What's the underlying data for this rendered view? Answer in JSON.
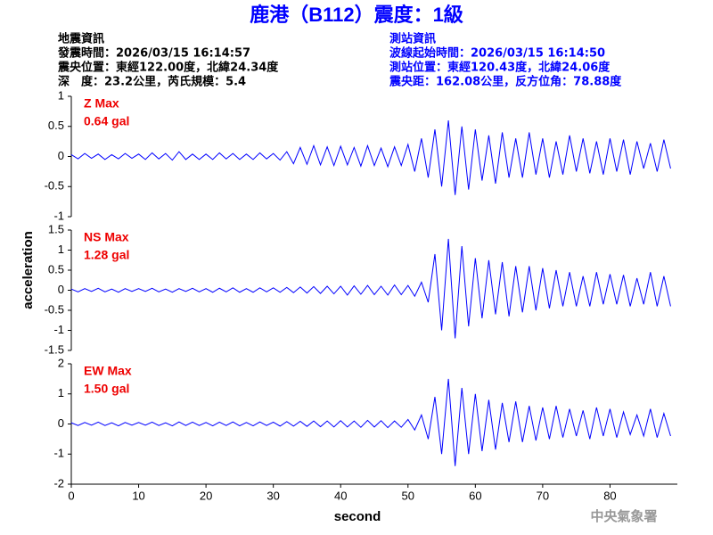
{
  "header": {
    "title": "鹿港（B112）震度：1級",
    "left": [
      "地震資訊",
      "發震時間：2026/03/15 16:14:57",
      "震央位置：東經122.00度，北緯24.34度",
      "深　度：23.2公里，芮氏規模：5.4"
    ],
    "right": [
      "測站資訊",
      "波線起始時間：2026/03/15 16:14:50",
      "測站位置：東經120.43度，北緯24.06度",
      "震央距：162.08公里，反方位角：78.88度"
    ]
  },
  "y_label": "acceleration",
  "x_label": "second",
  "credit": "中央氣象署",
  "chart_data": [
    {
      "type": "line",
      "color": "#0000ff",
      "annotations": [
        "Z Max",
        "0.64 gal"
      ],
      "xlim": [
        0,
        90
      ],
      "ylim": [
        -1,
        1
      ],
      "yticks": [
        -1,
        -0.5,
        0,
        0.5,
        1
      ],
      "x": [
        0,
        1,
        2,
        3,
        4,
        5,
        6,
        7,
        8,
        9,
        10,
        11,
        12,
        13,
        14,
        15,
        16,
        17,
        18,
        19,
        20,
        21,
        22,
        23,
        24,
        25,
        26,
        27,
        28,
        29,
        30,
        31,
        32,
        33,
        34,
        35,
        36,
        37,
        38,
        39,
        40,
        41,
        42,
        43,
        44,
        45,
        46,
        47,
        48,
        49,
        50,
        51,
        52,
        53,
        54,
        55,
        56,
        57,
        58,
        59,
        60,
        61,
        62,
        63,
        64,
        65,
        66,
        67,
        68,
        69,
        70,
        71,
        72,
        73,
        74,
        75,
        76,
        77,
        78,
        79,
        80,
        81,
        82,
        83,
        84,
        85,
        86,
        87,
        88,
        89
      ],
      "values": [
        0.03,
        -0.04,
        0.05,
        -0.03,
        0.04,
        -0.05,
        0.03,
        -0.04,
        0.05,
        -0.03,
        0.04,
        -0.05,
        0.06,
        -0.04,
        0.05,
        -0.06,
        0.08,
        -0.05,
        0.04,
        -0.05,
        0.04,
        -0.05,
        0.06,
        -0.04,
        0.05,
        -0.05,
        0.04,
        -0.05,
        0.06,
        -0.04,
        0.05,
        -0.06,
        0.08,
        -0.12,
        0.15,
        -0.13,
        0.18,
        -0.14,
        0.16,
        -0.15,
        0.17,
        -0.14,
        0.15,
        -0.16,
        0.18,
        -0.15,
        0.14,
        -0.17,
        0.16,
        -0.15,
        0.2,
        -0.25,
        0.3,
        -0.35,
        0.45,
        -0.5,
        0.6,
        -0.64,
        0.5,
        -0.55,
        0.45,
        -0.4,
        0.35,
        -0.45,
        0.4,
        -0.35,
        0.3,
        -0.35,
        0.4,
        -0.3,
        0.3,
        -0.35,
        0.25,
        -0.3,
        0.35,
        -0.25,
        0.3,
        -0.28,
        0.25,
        -0.3,
        0.3,
        -0.25,
        0.28,
        -0.3,
        0.25,
        -0.2,
        0.22,
        -0.25,
        0.28,
        -0.2
      ]
    },
    {
      "type": "line",
      "color": "#0000ff",
      "annotations": [
        "NS Max",
        "1.28 gal"
      ],
      "xlim": [
        0,
        90
      ],
      "ylim": [
        -1.5,
        1.5
      ],
      "yticks": [
        -1.5,
        -1,
        -0.5,
        0,
        0.5,
        1,
        1.5
      ],
      "x": [
        0,
        1,
        2,
        3,
        4,
        5,
        6,
        7,
        8,
        9,
        10,
        11,
        12,
        13,
        14,
        15,
        16,
        17,
        18,
        19,
        20,
        21,
        22,
        23,
        24,
        25,
        26,
        27,
        28,
        29,
        30,
        31,
        32,
        33,
        34,
        35,
        36,
        37,
        38,
        39,
        40,
        41,
        42,
        43,
        44,
        45,
        46,
        47,
        48,
        49,
        50,
        51,
        52,
        53,
        54,
        55,
        56,
        57,
        58,
        59,
        60,
        61,
        62,
        63,
        64,
        65,
        66,
        67,
        68,
        69,
        70,
        71,
        72,
        73,
        74,
        75,
        76,
        77,
        78,
        79,
        80,
        81,
        82,
        83,
        84,
        85,
        86,
        87,
        88,
        89
      ],
      "values": [
        0.03,
        -0.04,
        0.04,
        -0.03,
        0.05,
        -0.04,
        0.03,
        -0.05,
        0.04,
        -0.03,
        0.04,
        -0.03,
        0.05,
        -0.04,
        0.03,
        -0.05,
        0.04,
        -0.03,
        0.05,
        -0.04,
        0.04,
        -0.05,
        0.05,
        -0.04,
        0.06,
        -0.05,
        0.04,
        -0.05,
        0.06,
        -0.04,
        0.06,
        -0.05,
        0.07,
        -0.06,
        0.08,
        -0.07,
        0.09,
        -0.08,
        0.1,
        -0.09,
        0.1,
        -0.12,
        0.11,
        -0.1,
        0.12,
        -0.11,
        0.1,
        -0.12,
        0.13,
        -0.11,
        0.12,
        -0.15,
        0.2,
        -0.3,
        0.9,
        -1.0,
        1.28,
        -1.2,
        1.1,
        -0.9,
        0.8,
        -0.7,
        0.75,
        -0.6,
        0.7,
        -0.65,
        0.6,
        -0.55,
        0.6,
        -0.5,
        0.55,
        -0.45,
        0.5,
        -0.4,
        0.45,
        -0.4,
        0.35,
        -0.4,
        0.45,
        -0.35,
        0.4,
        -0.35,
        0.38,
        -0.4,
        0.3,
        -0.35,
        0.45,
        -0.4,
        0.35,
        -0.4
      ]
    },
    {
      "type": "line",
      "color": "#0000ff",
      "annotations": [
        "EW Max",
        "1.50 gal"
      ],
      "xlim": [
        0,
        90
      ],
      "ylim": [
        -2,
        2
      ],
      "yticks": [
        -2,
        -1,
        0,
        1,
        2
      ],
      "xticks": [
        0,
        10,
        20,
        30,
        40,
        50,
        60,
        70,
        80
      ],
      "x": [
        0,
        1,
        2,
        3,
        4,
        5,
        6,
        7,
        8,
        9,
        10,
        11,
        12,
        13,
        14,
        15,
        16,
        17,
        18,
        19,
        20,
        21,
        22,
        23,
        24,
        25,
        26,
        27,
        28,
        29,
        30,
        31,
        32,
        33,
        34,
        35,
        36,
        37,
        38,
        39,
        40,
        41,
        42,
        43,
        44,
        45,
        46,
        47,
        48,
        49,
        50,
        51,
        52,
        53,
        54,
        55,
        56,
        57,
        58,
        59,
        60,
        61,
        62,
        63,
        64,
        65,
        66,
        67,
        68,
        69,
        70,
        71,
        72,
        73,
        74,
        75,
        76,
        77,
        78,
        79,
        80,
        81,
        82,
        83,
        84,
        85,
        86,
        87,
        88,
        89
      ],
      "values": [
        0.04,
        -0.05,
        0.05,
        -0.04,
        0.06,
        -0.05,
        0.04,
        -0.06,
        0.05,
        -0.04,
        0.05,
        -0.04,
        0.06,
        -0.05,
        0.04,
        -0.06,
        0.07,
        -0.05,
        0.06,
        -0.05,
        0.05,
        -0.06,
        0.06,
        -0.05,
        0.07,
        -0.06,
        0.05,
        -0.06,
        0.07,
        -0.05,
        0.06,
        -0.07,
        0.08,
        -0.07,
        0.09,
        -0.08,
        0.1,
        -0.09,
        0.1,
        -0.1,
        0.11,
        -0.1,
        0.1,
        -0.11,
        0.12,
        -0.1,
        0.11,
        -0.12,
        0.1,
        -0.11,
        0.15,
        -0.2,
        0.3,
        -0.5,
        0.9,
        -1.0,
        1.5,
        -1.4,
        1.2,
        -1.0,
        1.0,
        -0.9,
        0.8,
        -0.85,
        0.7,
        -0.6,
        0.75,
        -0.6,
        0.6,
        -0.55,
        0.55,
        -0.5,
        0.6,
        -0.45,
        0.5,
        -0.4,
        0.45,
        -0.5,
        0.55,
        -0.4,
        0.5,
        -0.45,
        0.4,
        -0.35,
        0.3,
        -0.4,
        0.5,
        -0.45,
        0.35,
        -0.4
      ]
    }
  ]
}
